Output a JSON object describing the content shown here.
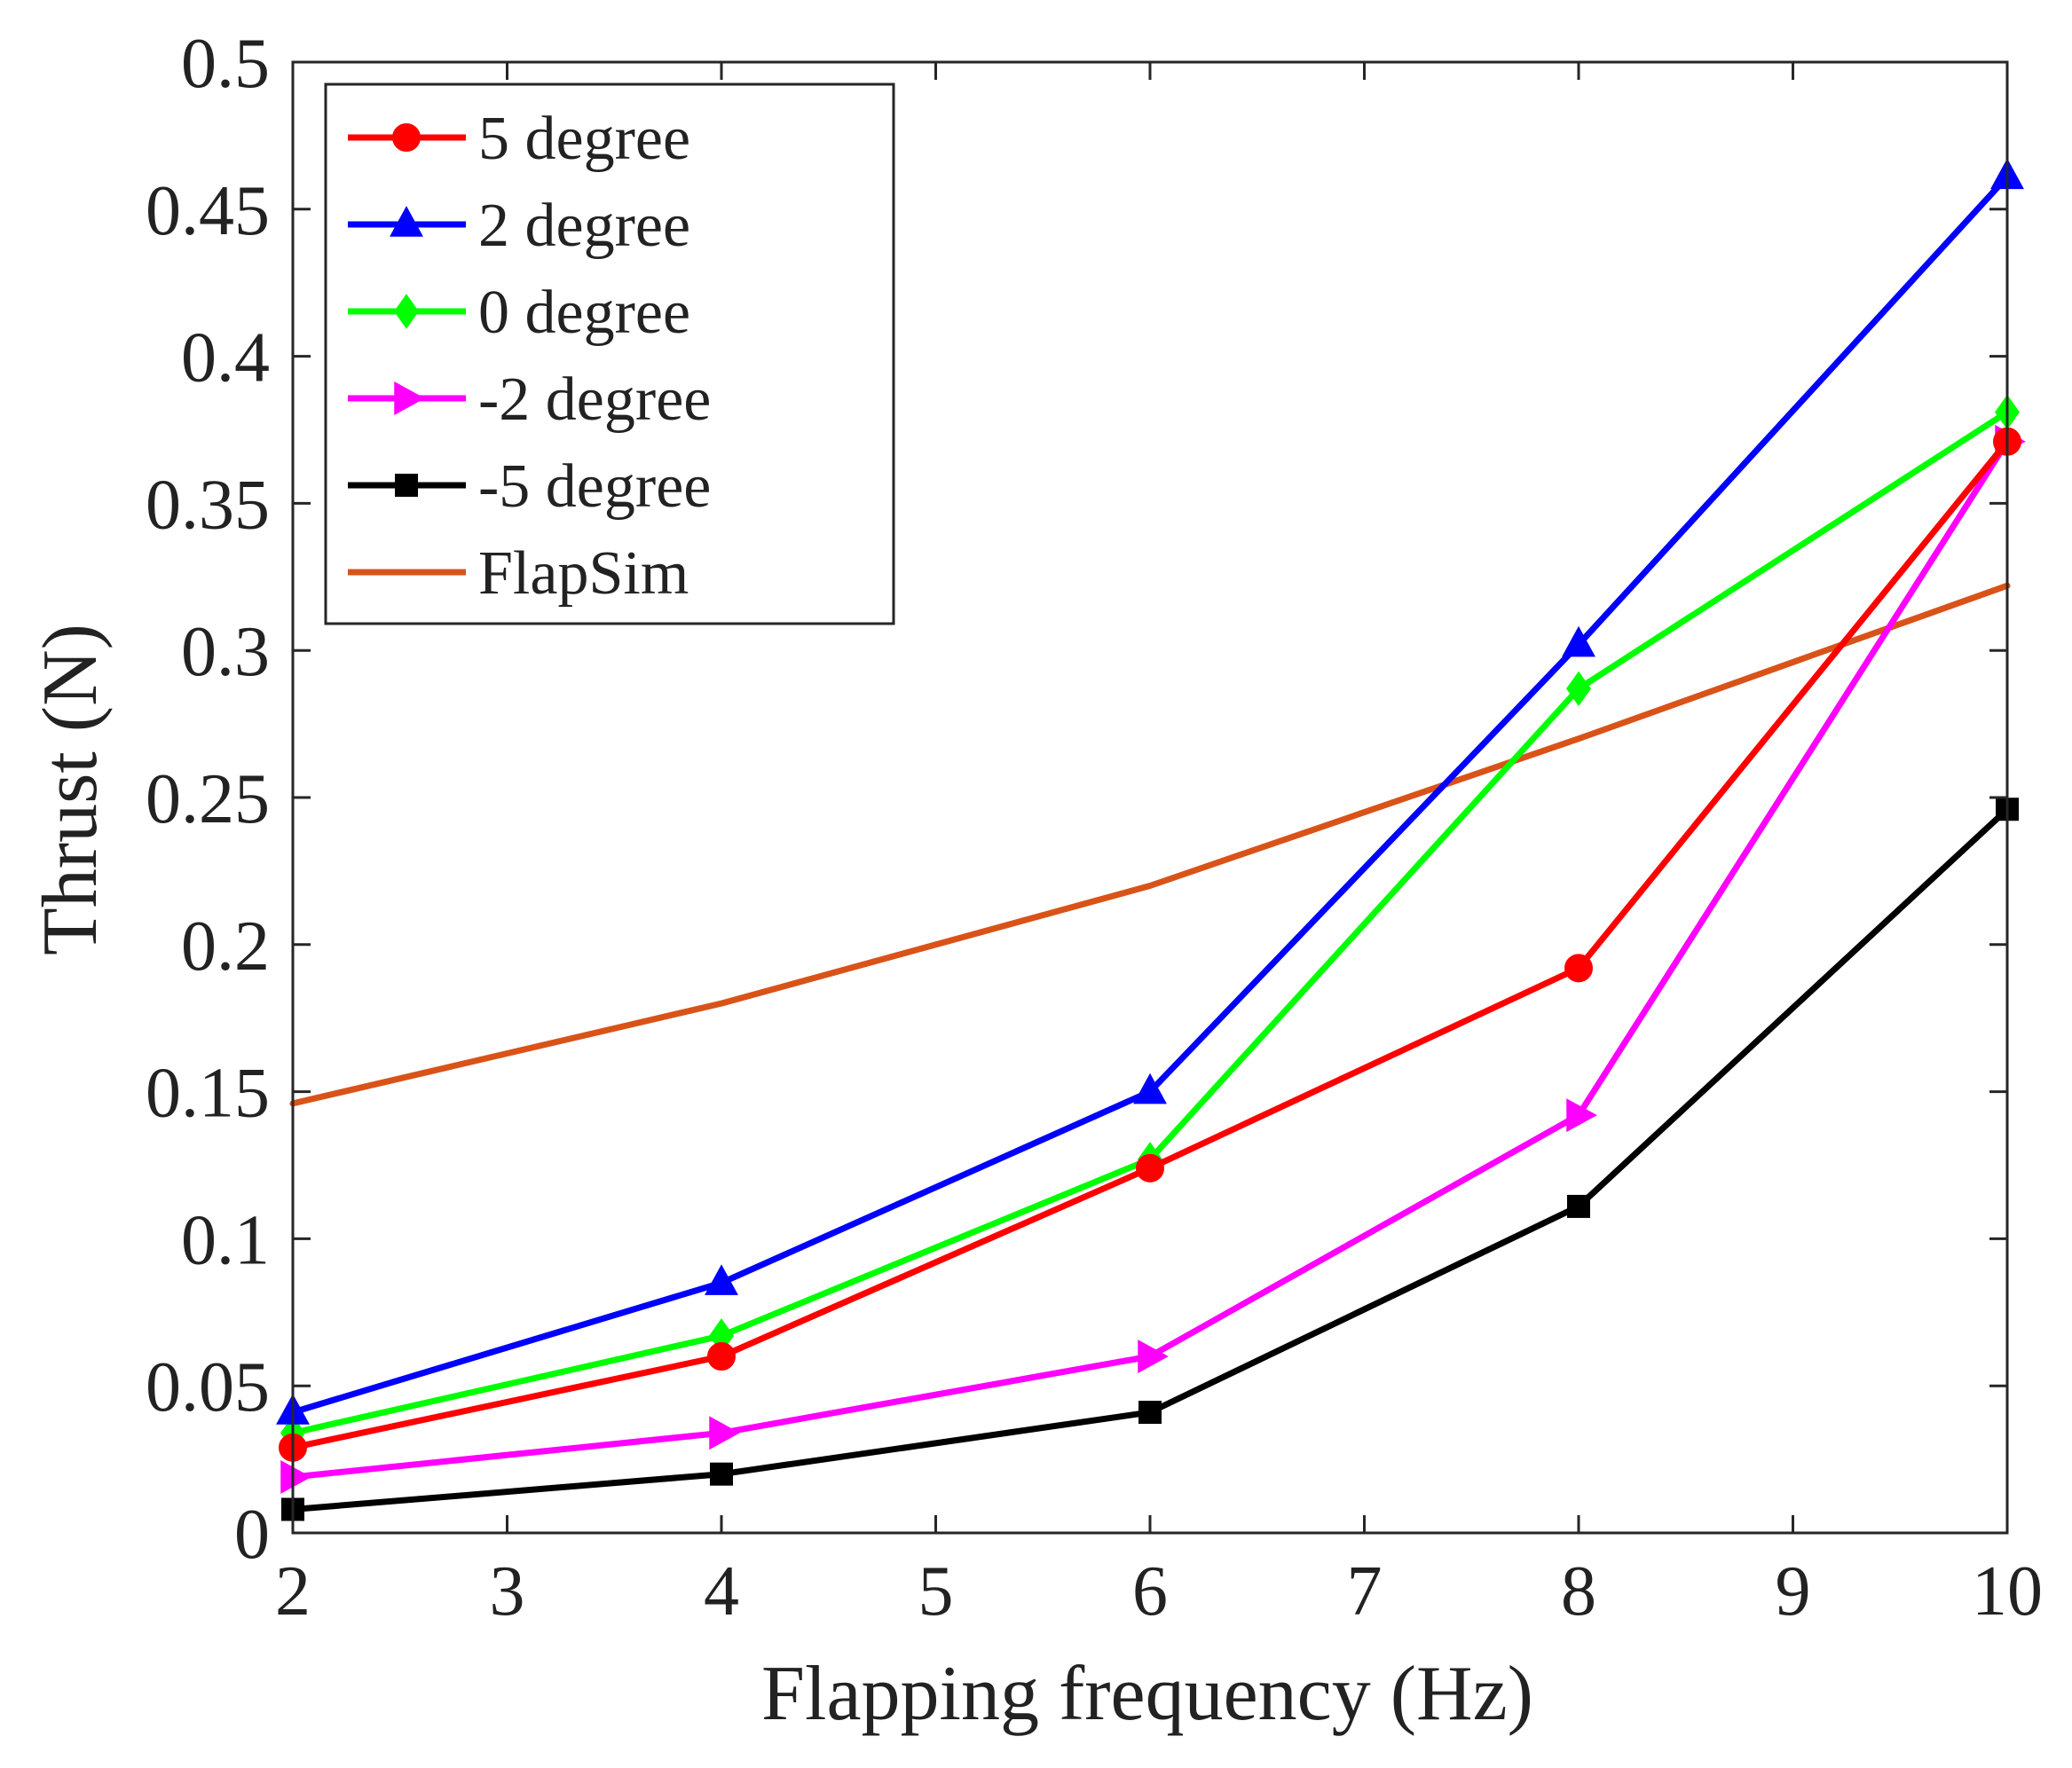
{
  "chart_data": {
    "type": "line",
    "xlabel": "Flapping frequency (Hz)",
    "ylabel": "Thrust (N)",
    "xlim": [
      2,
      10
    ],
    "ylim": [
      0,
      0.5
    ],
    "xticks": [
      2,
      3,
      4,
      5,
      6,
      7,
      8,
      9,
      10
    ],
    "yticks": [
      0,
      0.05,
      0.1,
      0.15,
      0.2,
      0.25,
      0.3,
      0.35,
      0.4,
      0.45,
      0.5
    ],
    "xtick_labels": [
      "2",
      "3",
      "4",
      "5",
      "6",
      "7",
      "8",
      "9",
      "10"
    ],
    "ytick_labels": [
      "0",
      "0.05",
      "0.1",
      "0.15",
      "0.2",
      "0.25",
      "0.3",
      "0.35",
      "0.4",
      "0.45",
      "0.5"
    ],
    "legend_position": "top-left",
    "series": [
      {
        "name": "5 degree",
        "color": "#ff0000",
        "marker": "circle",
        "x": [
          2,
          4,
          6,
          8,
          10
        ],
        "values": [
          0.029,
          0.06,
          0.124,
          0.192,
          0.371
        ]
      },
      {
        "name": "2 degree",
        "color": "#0000ff",
        "marker": "triangle-up",
        "x": [
          2,
          4,
          6,
          8,
          10
        ],
        "values": [
          0.041,
          0.085,
          0.15,
          0.302,
          0.461
        ]
      },
      {
        "name": "0 degree",
        "color": "#00ff00",
        "marker": "diamond",
        "x": [
          2,
          4,
          6,
          8,
          10
        ],
        "values": [
          0.034,
          0.067,
          0.127,
          0.287,
          0.381
        ]
      },
      {
        "name": "-2 degree",
        "color": "#ff00ff",
        "marker": "triangle-right",
        "x": [
          2,
          4,
          6,
          8,
          10
        ],
        "values": [
          0.019,
          0.034,
          0.06,
          0.142,
          0.371
        ]
      },
      {
        "name": "-5 degree",
        "color": "#000000",
        "marker": "square",
        "x": [
          2,
          4,
          6,
          8,
          10
        ],
        "values": [
          0.008,
          0.02,
          0.041,
          0.111,
          0.246
        ]
      },
      {
        "name": "FlapSim",
        "color": "#d95319",
        "marker": "none",
        "x": [
          2,
          4,
          6,
          8,
          10
        ],
        "values": [
          0.146,
          0.18,
          0.22,
          0.27,
          0.322
        ]
      }
    ]
  }
}
